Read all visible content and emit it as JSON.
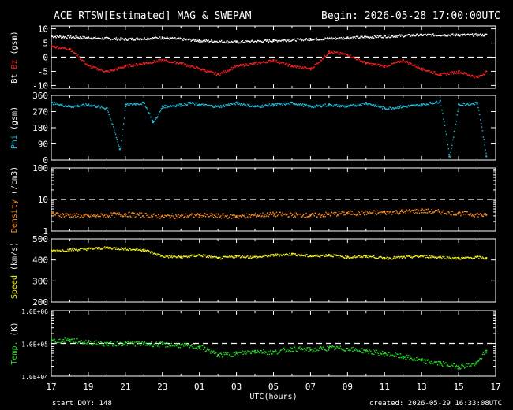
{
  "header": {
    "title": "ACE RTSW[Estimated] MAG & SWEPAM",
    "begin": "Begin: 2026-05-28 17:00:00UTC"
  },
  "footer": {
    "start_doy": "start DOY: 148",
    "created": "created: 2026-05-29 16:33:08UTC"
  },
  "colors": {
    "bt": "#ffffff",
    "bz": "#ff2020",
    "phi": "#20c0e0",
    "density": "#ff9020",
    "speed": "#f0f020",
    "temp": "#20e020",
    "frame": "#ffffff",
    "background": "#000000"
  },
  "chart_data": [
    {
      "type": "scatter",
      "panel": "mag",
      "ylabel_parts": [
        "Bt",
        "Bz",
        "(gsm)"
      ],
      "ylim": [
        -11,
        11
      ],
      "yticks": [
        "10",
        "5",
        "0",
        "-5",
        "-10"
      ],
      "reference_line": 0,
      "series": [
        {
          "name": "Bt",
          "color": "#ffffff",
          "x": [
            0,
            2,
            4,
            6,
            8,
            10,
            12,
            14,
            16,
            18,
            20,
            22,
            23.5
          ],
          "y": [
            7.5,
            7,
            6.5,
            7,
            6,
            5.5,
            6,
            6.5,
            7,
            7.5,
            8,
            8,
            8
          ]
        },
        {
          "name": "Bz",
          "color": "#ff2020",
          "x": [
            0,
            1,
            2,
            3,
            4,
            5,
            6,
            7,
            8,
            9,
            10,
            11,
            12,
            13,
            14,
            15,
            16,
            17,
            18,
            19,
            20,
            21,
            22,
            23,
            23.5
          ],
          "y": [
            4,
            3,
            -3,
            -5,
            -3,
            -2,
            -1,
            -2,
            -4,
            -6,
            -3,
            -2,
            -1,
            -3,
            -4,
            2,
            1,
            -2,
            -3,
            -1,
            -4,
            -6,
            -5,
            -7,
            -5
          ]
        }
      ]
    },
    {
      "type": "scatter",
      "panel": "phi",
      "ylabel_parts": [
        "Phi",
        "(gsm)"
      ],
      "ylim": [
        0,
        360
      ],
      "yticks": [
        "360",
        "270",
        "180",
        "90",
        "0"
      ],
      "series": [
        {
          "name": "Phi",
          "color": "#20c0e0",
          "x": [
            0,
            1,
            2,
            3,
            3.7,
            4,
            5,
            5.5,
            6,
            7,
            7.5,
            8,
            9,
            10,
            11,
            12,
            13,
            14,
            15,
            16,
            17,
            18,
            19,
            20,
            21,
            21.5,
            22,
            23,
            23.5
          ],
          "y": [
            320,
            300,
            310,
            290,
            60,
            310,
            320,
            210,
            300,
            310,
            320,
            310,
            300,
            320,
            300,
            310,
            320,
            300,
            310,
            300,
            320,
            290,
            300,
            310,
            330,
            20,
            310,
            320,
            20
          ]
        }
      ]
    },
    {
      "type": "scatter",
      "panel": "density",
      "ylabel_parts": [
        "Density",
        "(/cm3)"
      ],
      "yscale": "log",
      "ylim": [
        1,
        100
      ],
      "yticks": [
        "100",
        "10",
        "1"
      ],
      "reference_line": 10,
      "series": [
        {
          "name": "Density",
          "color": "#ff9020",
          "x": [
            0,
            2,
            4,
            6,
            8,
            10,
            12,
            14,
            16,
            18,
            20,
            22,
            23.5
          ],
          "y": [
            3.5,
            3,
            3.5,
            3,
            3.2,
            3,
            3.5,
            3.2,
            3.8,
            4,
            4.5,
            3.8,
            3.2
          ]
        }
      ]
    },
    {
      "type": "scatter",
      "panel": "speed",
      "ylabel_parts": [
        "Speed",
        "(km/s)"
      ],
      "ylim": [
        200,
        500
      ],
      "yticks": [
        "500",
        "400",
        "300",
        "200"
      ],
      "series": [
        {
          "name": "Speed",
          "color": "#f0f020",
          "x": [
            0,
            1,
            2,
            3,
            4,
            5,
            6,
            7,
            8,
            9,
            10,
            11,
            12,
            13,
            14,
            15,
            16,
            17,
            18,
            19,
            20,
            21,
            22,
            23,
            23.5
          ],
          "y": [
            445,
            450,
            455,
            460,
            455,
            450,
            420,
            415,
            425,
            410,
            420,
            415,
            425,
            430,
            420,
            425,
            415,
            420,
            410,
            415,
            420,
            415,
            410,
            415,
            410
          ]
        }
      ]
    },
    {
      "type": "scatter",
      "panel": "temp",
      "ylabel_parts": [
        "Temp.",
        "(K)"
      ],
      "yscale": "log",
      "ylim": [
        10000,
        1000000
      ],
      "yticks": [
        "1.0E+06",
        "1.0E+05",
        "1.0E+04"
      ],
      "reference_line": 100000,
      "xlabel": "UTC(hours)",
      "xticks": [
        "17",
        "19",
        "21",
        "23",
        "01",
        "03",
        "05",
        "07",
        "09",
        "11",
        "13",
        "15",
        "17"
      ],
      "series": [
        {
          "name": "Temp",
          "color": "#20e020",
          "x": [
            0,
            1,
            2,
            3,
            4,
            5,
            6,
            7,
            8,
            9,
            10,
            11,
            12,
            13,
            14,
            15,
            16,
            17,
            18,
            19,
            20,
            21,
            22,
            23,
            23.5
          ],
          "y": [
            120000,
            130000,
            110000,
            100000,
            105000,
            100000,
            95000,
            90000,
            80000,
            45000,
            50000,
            60000,
            55000,
            70000,
            65000,
            75000,
            70000,
            60000,
            50000,
            40000,
            30000,
            25000,
            20000,
            25000,
            60000
          ]
        }
      ]
    }
  ]
}
